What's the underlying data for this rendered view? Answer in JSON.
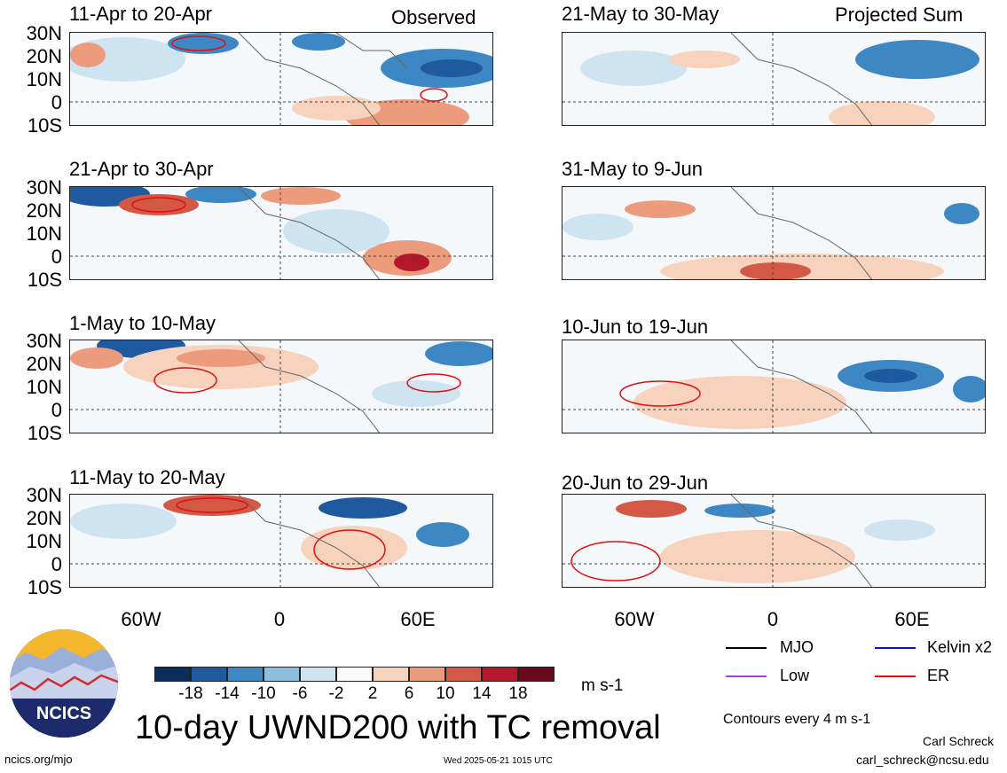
{
  "title": "10-day UWND200 with TC removal",
  "units": "m s-1",
  "column_labels": {
    "left": "Observed",
    "right": "Projected Sum"
  },
  "panels": {
    "left": [
      {
        "period": "11-Apr to 20-Apr"
      },
      {
        "period": "21-Apr to 30-Apr"
      },
      {
        "period": "1-May to 10-May"
      },
      {
        "period": "11-May to 20-May"
      }
    ],
    "right": [
      {
        "period": "21-May to 30-May"
      },
      {
        "period": "31-May to 9-Jun"
      },
      {
        "period": "10-Jun to 19-Jun"
      },
      {
        "period": "20-Jun to 29-Jun"
      }
    ]
  },
  "lat_labels": [
    "30N",
    "20N",
    "10N",
    "0",
    "10S"
  ],
  "lon_labels": [
    "60W",
    "0",
    "60E"
  ],
  "colorbar": {
    "labels": [
      "-18",
      "-14",
      "-10",
      "-6",
      "-2",
      "2",
      "6",
      "10",
      "14",
      "18"
    ],
    "colors": [
      "#0a2d5e",
      "#1f5aa0",
      "#3d88c4",
      "#8cbedd",
      "#cfe4f1",
      "#f9f9f9",
      "#f7d2bd",
      "#ec9c7c",
      "#d35846",
      "#b3172b",
      "#6b0a1c"
    ]
  },
  "legend": {
    "items": [
      {
        "label": "MJO",
        "color": "#000000"
      },
      {
        "label": "Kelvin x2",
        "color": "#1010d0"
      },
      {
        "label": "Low",
        "color": "#a040e0"
      },
      {
        "label": "ER",
        "color": "#e01010"
      }
    ],
    "contour_note": "Contours every 4 m s-1"
  },
  "logo_text": "NCICS",
  "footer": {
    "url": "ncics.org/mjo",
    "timestamp": "Wed 2025-05-21 1015 UTC",
    "author": "Carl Schreck",
    "email": "carl_schreck@ncsu.edu"
  }
}
